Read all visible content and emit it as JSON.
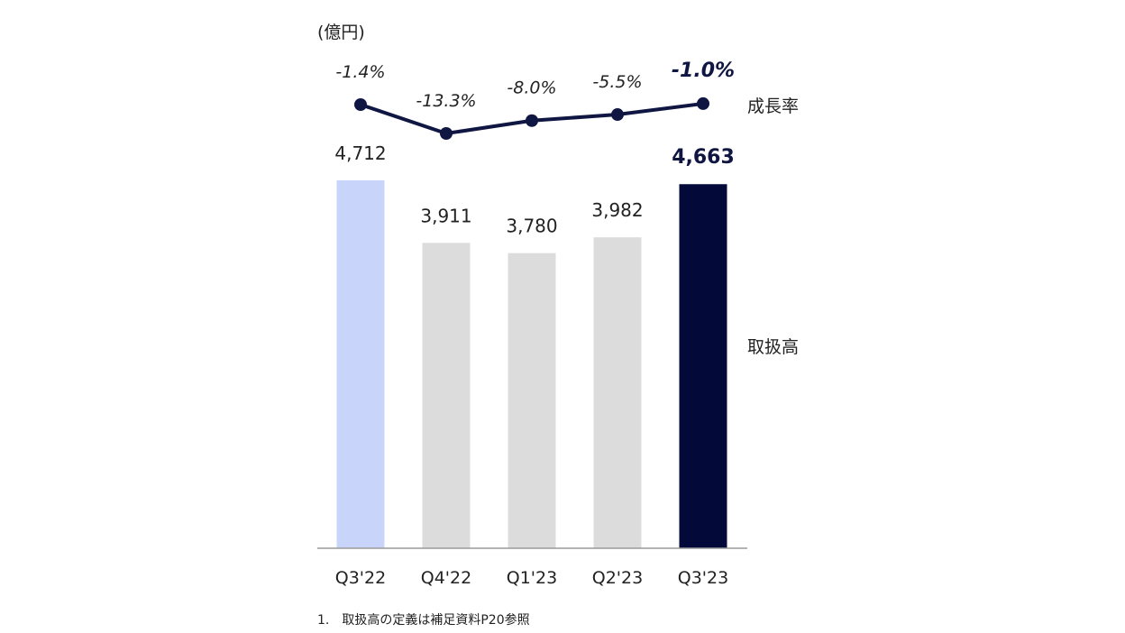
{
  "chart_data": {
    "type": "bar",
    "unit_label": "(億円)",
    "categories": [
      "Q3'22",
      "Q4'22",
      "Q1'23",
      "Q2'23",
      "Q3'23"
    ],
    "series": [
      {
        "name": "取扱高",
        "values": [
          4712,
          3911,
          3780,
          3982,
          4663
        ],
        "value_labels": [
          "4,712",
          "3,911",
          "3,780",
          "3,982",
          "4,663"
        ]
      },
      {
        "name": "成長率",
        "type": "line",
        "values": [
          -1.4,
          -13.3,
          -8.0,
          -5.5,
          -1.0
        ],
        "value_labels": [
          "-1.4%",
          "-13.3%",
          "-8.0%",
          "-5.5%",
          "-1.0%"
        ]
      }
    ],
    "ylim": [
      0,
      4712
    ],
    "growth_ylim": [
      -13.3,
      -1.4
    ],
    "grid": false,
    "highlight_index": 4
  },
  "colors": {
    "past_year_bar": "#c9d4fb",
    "bar": "#dcdcdc",
    "current_bar": "#030a3a",
    "line": "#101642",
    "baseline": "#9a9a9a",
    "text": "#222222",
    "highlight_text": "#101642"
  },
  "footnote": "1.　取扱高の定義は補足資料P20参照"
}
